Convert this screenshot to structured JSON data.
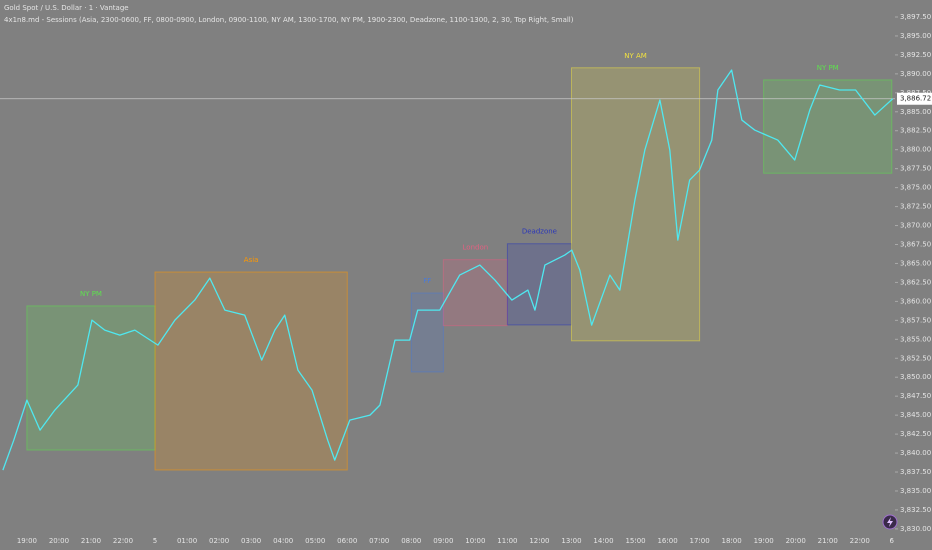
{
  "chart_data": {
    "type": "line",
    "title": "Gold Spot / U.S. Dollar · 1 · Vantage",
    "subtitle": "4x1n8.md - Sessions (Asia, 2300-0600, FF, 0800-0900, London, 0900-1100, NY AM, 1300-1700, NY PM, 1900-2300, Deadzone, 1100-1300, 2, 30, Top Right, Small)",
    "xlim": [
      -0.84,
      27.1
    ],
    "ylim": [
      3828.8,
      3899.74
    ],
    "xticks": [
      {
        "value": 0,
        "label": "19:00"
      },
      {
        "value": 1,
        "label": "20:00"
      },
      {
        "value": 2,
        "label": "21:00"
      },
      {
        "value": 3,
        "label": "22:00"
      },
      {
        "value": 4,
        "label": "5"
      },
      {
        "value": 5,
        "label": "01:00"
      },
      {
        "value": 6,
        "label": "02:00"
      },
      {
        "value": 7,
        "label": "03:00"
      },
      {
        "value": 8,
        "label": "04:00"
      },
      {
        "value": 9,
        "label": "05:00"
      },
      {
        "value": 10,
        "label": "06:00"
      },
      {
        "value": 11,
        "label": "07:00"
      },
      {
        "value": 12,
        "label": "08:00"
      },
      {
        "value": 13,
        "label": "09:00"
      },
      {
        "value": 14,
        "label": "10:00"
      },
      {
        "value": 15,
        "label": "11:00"
      },
      {
        "value": 16,
        "label": "12:00"
      },
      {
        "value": 17,
        "label": "13:00"
      },
      {
        "value": 18,
        "label": "14:00"
      },
      {
        "value": 19,
        "label": "15:00"
      },
      {
        "value": 20,
        "label": "16:00"
      },
      {
        "value": 21,
        "label": "17:00"
      },
      {
        "value": 22,
        "label": "18:00"
      },
      {
        "value": 23,
        "label": "19:00"
      },
      {
        "value": 24,
        "label": "20:00"
      },
      {
        "value": 25,
        "label": "21:00"
      },
      {
        "value": 26,
        "label": "22:00"
      },
      {
        "value": 27,
        "label": "6"
      }
    ],
    "yticks": [
      {
        "value": 3830,
        "label": "3,830.00"
      },
      {
        "value": 3832.5,
        "label": "3,832.50"
      },
      {
        "value": 3835,
        "label": "3,835.00"
      },
      {
        "value": 3837.5,
        "label": "3,837.50"
      },
      {
        "value": 3840,
        "label": "3,840.00"
      },
      {
        "value": 3842.5,
        "label": "3,842.50"
      },
      {
        "value": 3845,
        "label": "3,845.00"
      },
      {
        "value": 3847.5,
        "label": "3,847.50"
      },
      {
        "value": 3850,
        "label": "3,850.00"
      },
      {
        "value": 3852.5,
        "label": "3,852.50"
      },
      {
        "value": 3855,
        "label": "3,855.00"
      },
      {
        "value": 3857.5,
        "label": "3,857.50"
      },
      {
        "value": 3860,
        "label": "3,860.00"
      },
      {
        "value": 3862.5,
        "label": "3,862.50"
      },
      {
        "value": 3865,
        "label": "3,865.00"
      },
      {
        "value": 3867.5,
        "label": "3,867.50"
      },
      {
        "value": 3870,
        "label": "3,870.00"
      },
      {
        "value": 3872.5,
        "label": "3,872.50"
      },
      {
        "value": 3875,
        "label": "3,875.00"
      },
      {
        "value": 3877.5,
        "label": "3,877.50"
      },
      {
        "value": 3880,
        "label": "3,880.00"
      },
      {
        "value": 3882.5,
        "label": "3,882.50"
      },
      {
        "value": 3885,
        "label": "3,885.00"
      },
      {
        "value": 3887.5,
        "label": "3,887.50"
      },
      {
        "value": 3890,
        "label": "3,890.00"
      },
      {
        "value": 3892.5,
        "label": "3,892.50"
      },
      {
        "value": 3895,
        "label": "3,895.00"
      },
      {
        "value": 3897.5,
        "label": "3,897.50"
      }
    ],
    "last_price": {
      "value": 3886.72,
      "label": "3,886.72"
    },
    "sessions": [
      {
        "name": "NY PM",
        "color": "#5ee04e",
        "start": 0,
        "end": 4,
        "high": 3859.4,
        "low": 3840.4
      },
      {
        "name": "Asia",
        "color": "#ff9800",
        "start": 4,
        "end": 10,
        "high": 3863.87,
        "low": 3837.77
      },
      {
        "name": "FF",
        "color": "#4a7ad8",
        "start": 12,
        "end": 13,
        "high": 3861.1,
        "low": 3850.7
      },
      {
        "name": "London",
        "color": "#e06080",
        "start": 13,
        "end": 15,
        "high": 3865.5,
        "low": 3856.8
      },
      {
        "name": "Deadzone",
        "color": "#2a36b8",
        "start": 15,
        "end": 17,
        "high": 3867.6,
        "low": 3856.9
      },
      {
        "name": "NY AM",
        "color": "#f0e040",
        "start": 17,
        "end": 21,
        "high": 3890.8,
        "low": 3854.8
      },
      {
        "name": "NY PM",
        "color": "#5ee04e",
        "start": 23,
        "end": 27,
        "high": 3889.2,
        "low": 3876.9
      }
    ],
    "series": [
      {
        "color": "#4fe8f0",
        "x": [
          -0.75,
          -0.41,
          0,
          0.41,
          0.87,
          1.59,
          2.03,
          2.43,
          2.9,
          3.37,
          4.09,
          4.62,
          5.24,
          5.71,
          6.18,
          6.8,
          7.33,
          7.74,
          8.05,
          8.46,
          8.9,
          9.39,
          9.61,
          10.08,
          10.71,
          11.02,
          11.49,
          11.95,
          12.2,
          12.89,
          13.51,
          14.14,
          14.61,
          15.14,
          15.64,
          15.86,
          16.17,
          16.79,
          17.01,
          17.26,
          17.63,
          18.2,
          18.51,
          18.98,
          19.29,
          19.76,
          20.07,
          20.32,
          20.69,
          21,
          21.38,
          21.57,
          22,
          22.32,
          22.72,
          23.44,
          23.97,
          24.44,
          24.75,
          25.37,
          25.87,
          26.47,
          27.03
        ],
        "values": [
          3837.75,
          3841.7,
          3846.98,
          3843.02,
          3845.66,
          3848.96,
          3857.53,
          3856.21,
          3855.55,
          3856.21,
          3854.23,
          3857.53,
          3860.17,
          3863.07,
          3858.85,
          3858.19,
          3852.26,
          3856.21,
          3858.19,
          3850.94,
          3848.3,
          3841.7,
          3839.07,
          3844.34,
          3845.0,
          3846.32,
          3854.89,
          3854.89,
          3858.85,
          3858.85,
          3863.47,
          3864.79,
          3862.81,
          3860.17,
          3861.49,
          3858.85,
          3864.79,
          3866.11,
          3866.76,
          3864.13,
          3856.87,
          3863.47,
          3861.49,
          3873.36,
          3879.95,
          3886.55,
          3879.95,
          3868.08,
          3876.0,
          3877.32,
          3881.27,
          3887.87,
          3890.51,
          3883.91,
          3882.59,
          3881.27,
          3878.64,
          3885.23,
          3888.53,
          3887.87,
          3887.87,
          3884.57,
          3886.72
        ]
      }
    ]
  }
}
